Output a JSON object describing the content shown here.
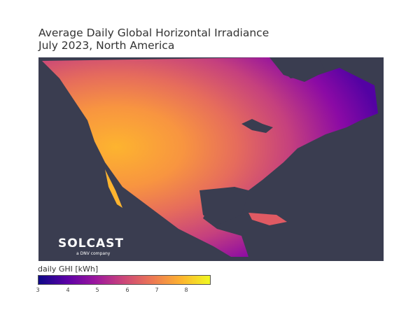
{
  "title_line1": "Average Daily Global Horizontal Irradiance",
  "title_line2": "July 2023, North America",
  "logo": {
    "text": "SOLCAST",
    "subtitle": "a DNV company"
  },
  "colorbar": {
    "label": "daily GHI [kWh]",
    "min": 3,
    "max": 8.8,
    "ticks": [
      "3",
      "4",
      "5",
      "6",
      "7",
      "8"
    ],
    "colormap": "plasma",
    "colors": [
      "#0d0887",
      "#5c01a6",
      "#9c179e",
      "#cc4778",
      "#ed7953",
      "#fdb42f",
      "#f0f921"
    ]
  },
  "map": {
    "region": "North America",
    "background": "#3a3d50"
  }
}
